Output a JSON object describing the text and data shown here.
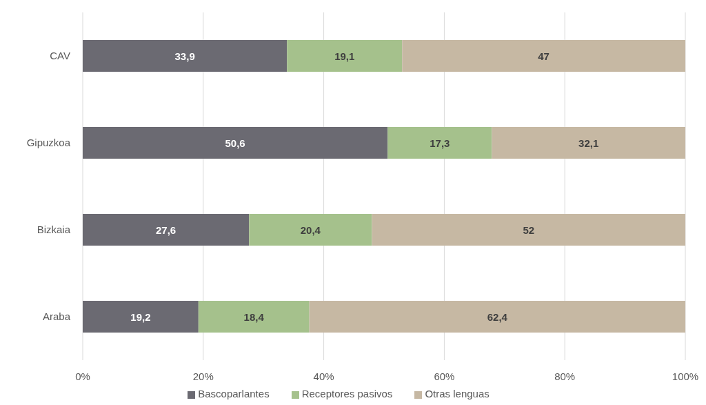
{
  "chart_data": {
    "type": "bar",
    "orientation": "horizontal",
    "stacked": true,
    "categories": [
      "CAV",
      "Gipuzkoa",
      "Bizkaia",
      "Araba"
    ],
    "series": [
      {
        "name": "Bascoparlantes",
        "color": "#6b6a72",
        "values": [
          33.9,
          50.6,
          27.6,
          19.2
        ],
        "value_labels": [
          "33,9",
          "50,6",
          "27,6",
          "19,2"
        ]
      },
      {
        "name": "Receptores pasivos",
        "color": "#a5c18c",
        "values": [
          19.1,
          17.3,
          20.4,
          18.4
        ],
        "value_labels": [
          "19,1",
          "17,3",
          "20,4",
          "18,4"
        ]
      },
      {
        "name": "Otras lenguas",
        "color": "#c6b8a3",
        "values": [
          47,
          32.1,
          52,
          62.4
        ],
        "value_labels": [
          "47",
          "32,1",
          "52",
          "62,4"
        ]
      }
    ],
    "xlim": [
      0,
      100
    ],
    "xticks": [
      {
        "value": 0,
        "label": "0%"
      },
      {
        "value": 20,
        "label": "20%"
      },
      {
        "value": 40,
        "label": "40%"
      },
      {
        "value": 60,
        "label": "60%"
      },
      {
        "value": 80,
        "label": "80%"
      },
      {
        "value": 100,
        "label": "100%"
      }
    ],
    "grid": "x",
    "legend": "bottom"
  }
}
